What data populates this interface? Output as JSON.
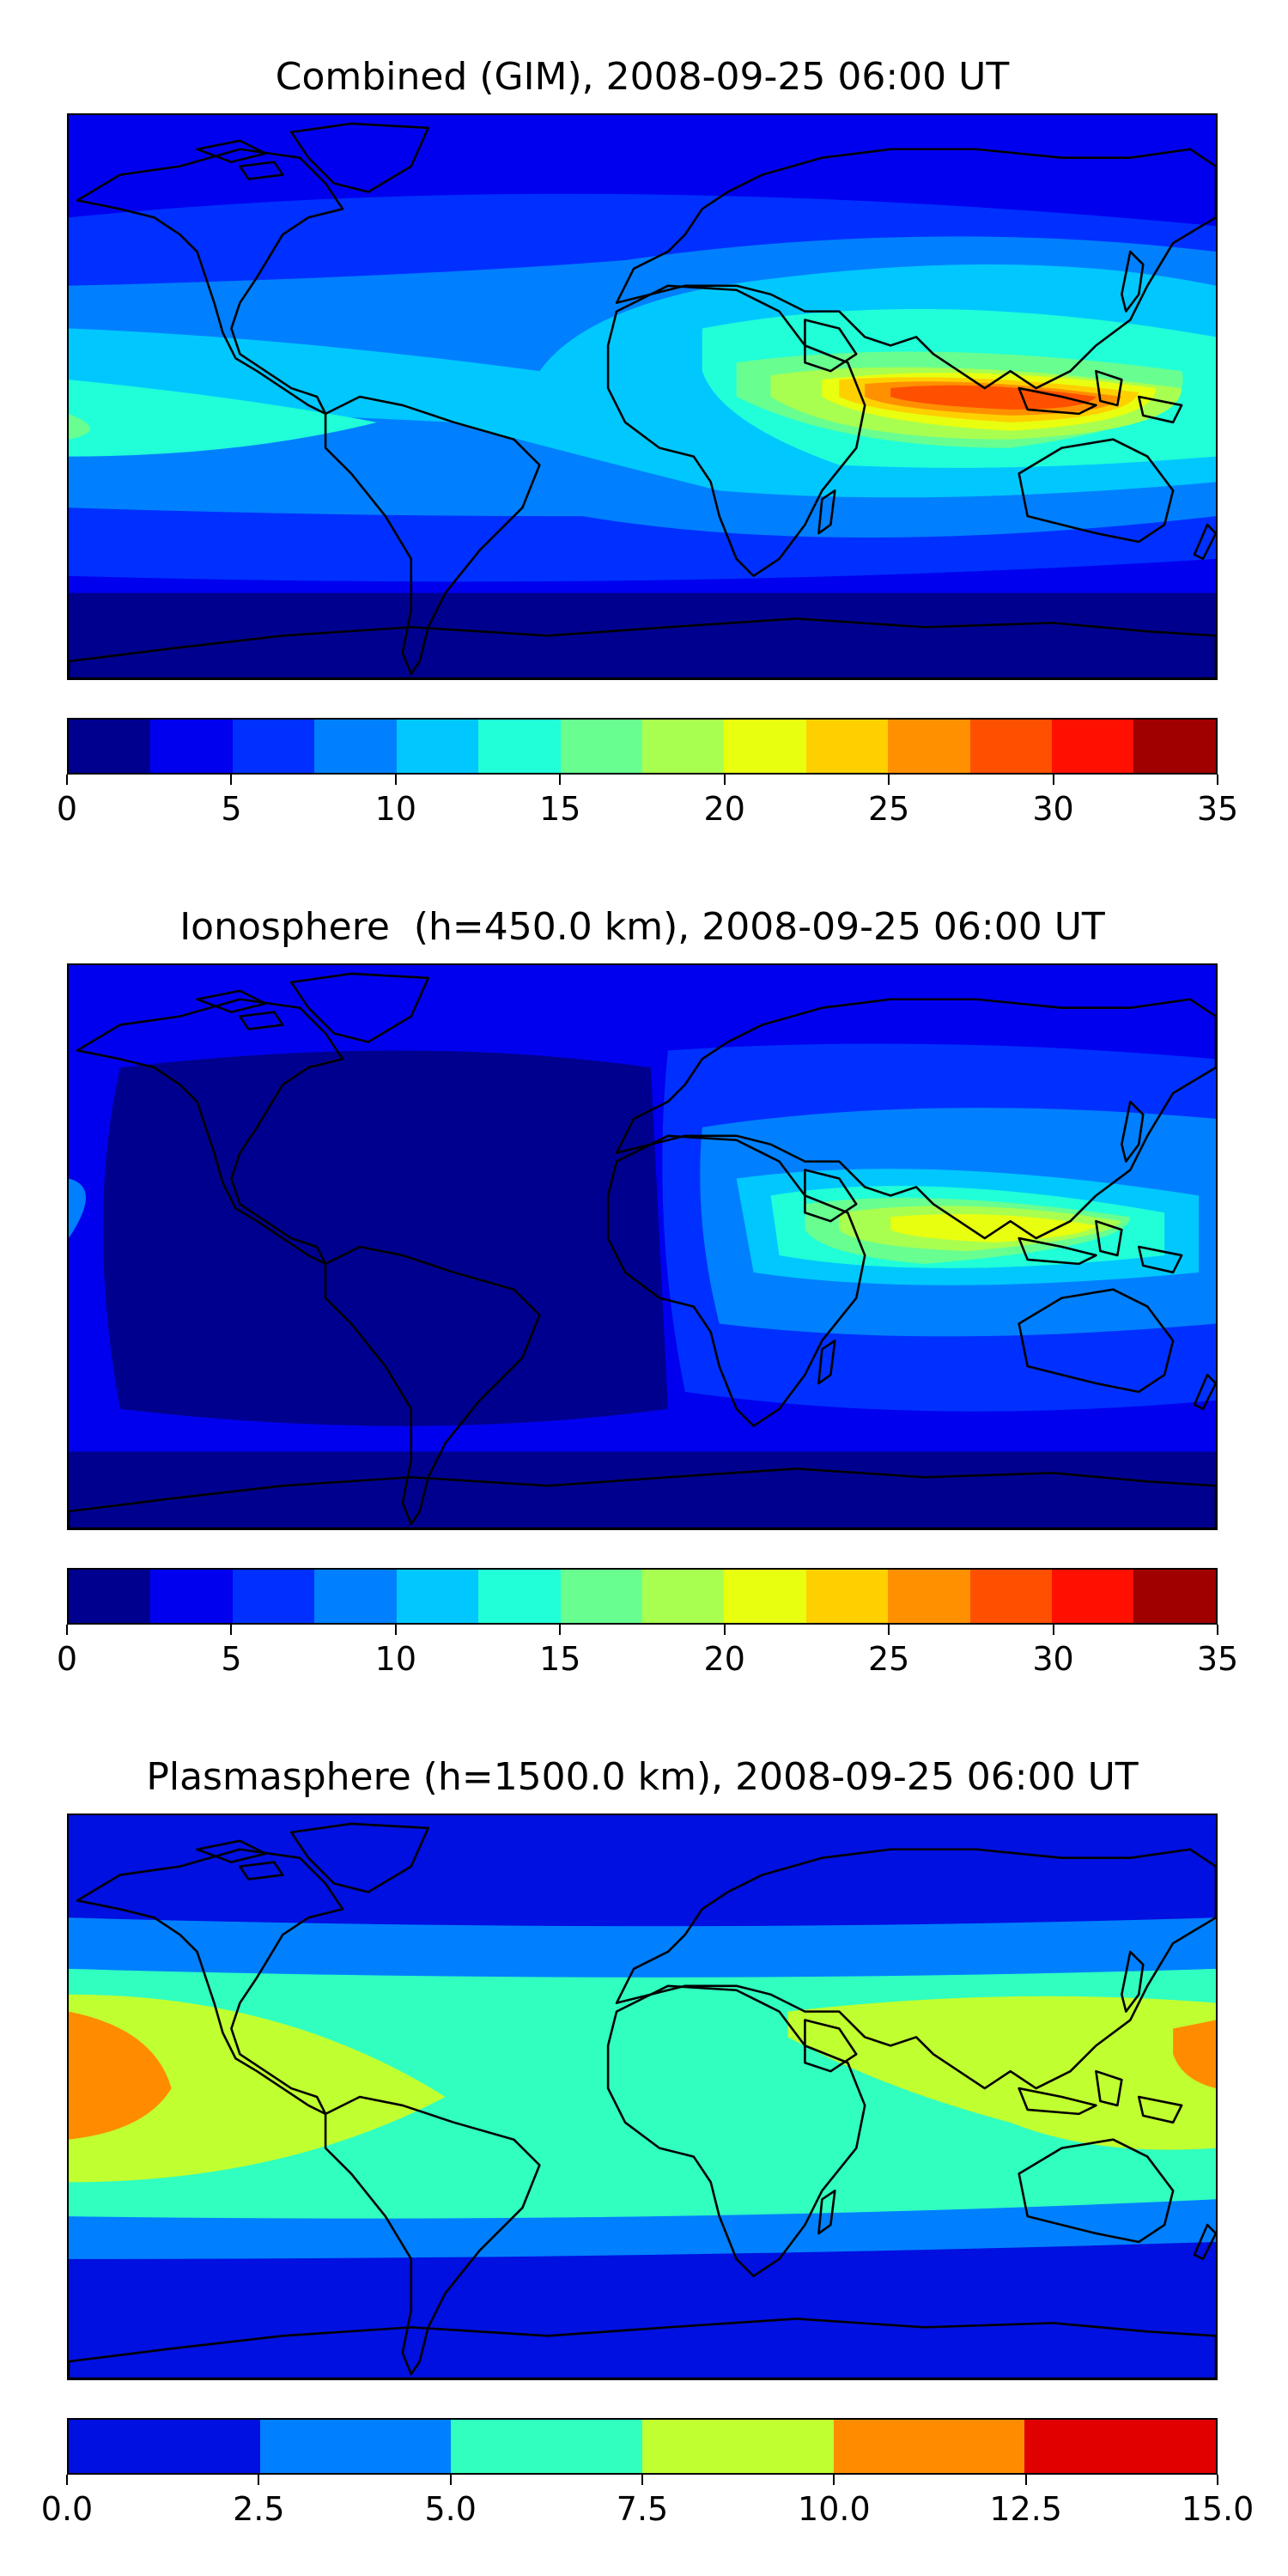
{
  "panels": [
    {
      "title": "Combined (GIM), 2008-09-25 06:00 UT",
      "colorbar": {
        "ticks": [
          "0",
          "5",
          "10",
          "15",
          "20",
          "25",
          "30",
          "35"
        ],
        "colors": [
          "#00008f",
          "#0000ef",
          "#0030ff",
          "#0080ff",
          "#00c8ff",
          "#20ffd8",
          "#68ff90",
          "#a8ff50",
          "#e8ff10",
          "#ffd000",
          "#ff9000",
          "#ff5000",
          "#ff1000",
          "#a00000"
        ]
      }
    },
    {
      "title": "Ionosphere  (h=450.0 km), 2008-09-25 06:00 UT",
      "colorbar": {
        "ticks": [
          "0",
          "5",
          "10",
          "15",
          "20",
          "25",
          "30",
          "35"
        ],
        "colors": [
          "#00008f",
          "#0000ef",
          "#0030ff",
          "#0080ff",
          "#00c8ff",
          "#20ffd8",
          "#68ff90",
          "#a8ff50",
          "#e8ff10",
          "#ffd000",
          "#ff9000",
          "#ff5000",
          "#ff1000",
          "#a00000"
        ]
      }
    },
    {
      "title": "Plasmasphere (h=1500.0 km), 2008-09-25 06:00 UT",
      "colorbar": {
        "ticks": [
          "0.0",
          "2.5",
          "5.0",
          "7.5",
          "10.0",
          "12.5",
          "15.0"
        ],
        "colors": [
          "#0010e0",
          "#0080ff",
          "#30ffc0",
          "#c0ff30",
          "#ff8c00",
          "#e00000"
        ]
      }
    }
  ]
}
